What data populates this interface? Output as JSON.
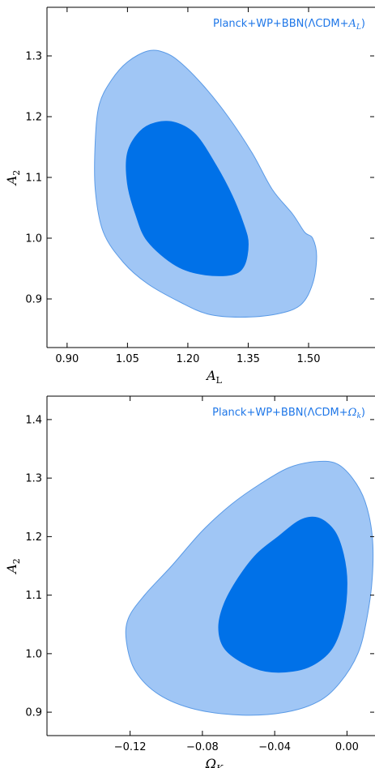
{
  "colors": {
    "outer_fill": "#a0c6f5",
    "inner_fill": "#0071e8",
    "contour_edge": "#5a9ae6",
    "legend_text": "#1f77e8",
    "axis": "#000000"
  },
  "chart_data": [
    {
      "type": "contour",
      "legend": {
        "prefix": "Planck+WP+BBN(ΛCDM+",
        "symbol": "A",
        "subscript": "L",
        "suffix": ")",
        "placement": "top-right"
      },
      "xlabel": {
        "symbol": "A",
        "subscript": "L"
      },
      "ylabel": {
        "symbol": "A",
        "subscript": "2"
      },
      "xlim": [
        0.85,
        1.665
      ],
      "ylim": [
        0.82,
        1.38
      ],
      "xticks": [
        0.9,
        1.05,
        1.2,
        1.35,
        1.5
      ],
      "xtick_labels": [
        "0.90",
        "1.05",
        "1.20",
        "1.35",
        "1.50"
      ],
      "yticks": [
        0.9,
        1.0,
        1.1,
        1.2,
        1.3
      ],
      "ytick_labels": [
        "0.9",
        "1.0",
        "1.1",
        "1.2",
        "1.3"
      ],
      "series": [
        {
          "level": "outer",
          "points": [
            [
              1.05,
              1.29
            ],
            [
              1.1,
              1.308
            ],
            [
              1.14,
              1.306
            ],
            [
              1.18,
              1.29
            ],
            [
              1.24,
              1.25
            ],
            [
              1.3,
              1.2
            ],
            [
              1.36,
              1.14
            ],
            [
              1.41,
              1.08
            ],
            [
              1.46,
              1.04
            ],
            [
              1.49,
              1.01
            ],
            [
              1.51,
              1.0
            ],
            [
              1.52,
              0.97
            ],
            [
              1.51,
              0.925
            ],
            [
              1.48,
              0.89
            ],
            [
              1.42,
              0.875
            ],
            [
              1.33,
              0.87
            ],
            [
              1.25,
              0.875
            ],
            [
              1.18,
              0.895
            ],
            [
              1.1,
              0.925
            ],
            [
              1.04,
              0.96
            ],
            [
              0.99,
              1.01
            ],
            [
              0.97,
              1.08
            ],
            [
              0.97,
              1.16
            ],
            [
              0.98,
              1.22
            ],
            [
              1.01,
              1.26
            ]
          ]
        },
        {
          "level": "inner",
          "points": [
            [
              1.08,
              1.175
            ],
            [
              1.12,
              1.19
            ],
            [
              1.17,
              1.19
            ],
            [
              1.22,
              1.17
            ],
            [
              1.27,
              1.12
            ],
            [
              1.31,
              1.07
            ],
            [
              1.34,
              1.02
            ],
            [
              1.35,
              0.99
            ],
            [
              1.34,
              0.955
            ],
            [
              1.31,
              0.94
            ],
            [
              1.24,
              0.94
            ],
            [
              1.17,
              0.955
            ],
            [
              1.1,
              0.995
            ],
            [
              1.07,
              1.04
            ],
            [
              1.05,
              1.09
            ],
            [
              1.05,
              1.14
            ]
          ]
        }
      ]
    },
    {
      "type": "contour",
      "legend": {
        "prefix": "Planck+WP+BBN(ΛCDM+",
        "symbol": "Ω",
        "subscript": "k",
        "suffix": ")",
        "placement": "top-right"
      },
      "xlabel": {
        "symbol": "Ω",
        "subscript": "K"
      },
      "ylabel": {
        "symbol": "A",
        "subscript": "2"
      },
      "xlim": [
        -0.166,
        0.0155
      ],
      "ylim": [
        0.86,
        1.44
      ],
      "xticks": [
        -0.12,
        -0.08,
        -0.04,
        0.0
      ],
      "xtick_labels": [
        "−0.12",
        "−0.08",
        "−0.04",
        "0.00"
      ],
      "yticks": [
        0.9,
        1.0,
        1.1,
        1.2,
        1.3,
        1.4
      ],
      "ytick_labels": [
        "0.9",
        "1.0",
        "1.1",
        "1.2",
        "1.3",
        "1.4"
      ],
      "series": [
        {
          "level": "outer",
          "points": [
            [
              -0.048,
              1.29
            ],
            [
              -0.032,
              1.318
            ],
            [
              -0.018,
              1.328
            ],
            [
              -0.006,
              1.325
            ],
            [
              0.003,
              1.3
            ],
            [
              0.01,
              1.26
            ],
            [
              0.014,
              1.2
            ],
            [
              0.014,
              1.13
            ],
            [
              0.011,
              1.06
            ],
            [
              0.006,
              1.0
            ],
            [
              -0.004,
              0.95
            ],
            [
              -0.016,
              0.918
            ],
            [
              -0.034,
              0.9
            ],
            [
              -0.058,
              0.895
            ],
            [
              -0.084,
              0.905
            ],
            [
              -0.104,
              0.93
            ],
            [
              -0.117,
              0.97
            ],
            [
              -0.122,
              1.02
            ],
            [
              -0.121,
              1.06
            ],
            [
              -0.112,
              1.1
            ],
            [
              -0.097,
              1.15
            ],
            [
              -0.08,
              1.21
            ],
            [
              -0.064,
              1.255
            ]
          ]
        },
        {
          "level": "inner",
          "points": [
            [
              -0.038,
              1.2
            ],
            [
              -0.026,
              1.228
            ],
            [
              -0.016,
              1.232
            ],
            [
              -0.007,
              1.21
            ],
            [
              -0.002,
              1.17
            ],
            [
              0.0,
              1.12
            ],
            [
              -0.002,
              1.06
            ],
            [
              -0.008,
              1.01
            ],
            [
              -0.018,
              0.982
            ],
            [
              -0.03,
              0.97
            ],
            [
              -0.045,
              0.97
            ],
            [
              -0.058,
              0.985
            ],
            [
              -0.068,
              1.01
            ],
            [
              -0.071,
              1.045
            ],
            [
              -0.068,
              1.085
            ],
            [
              -0.06,
              1.13
            ],
            [
              -0.05,
              1.17
            ]
          ]
        }
      ]
    }
  ]
}
